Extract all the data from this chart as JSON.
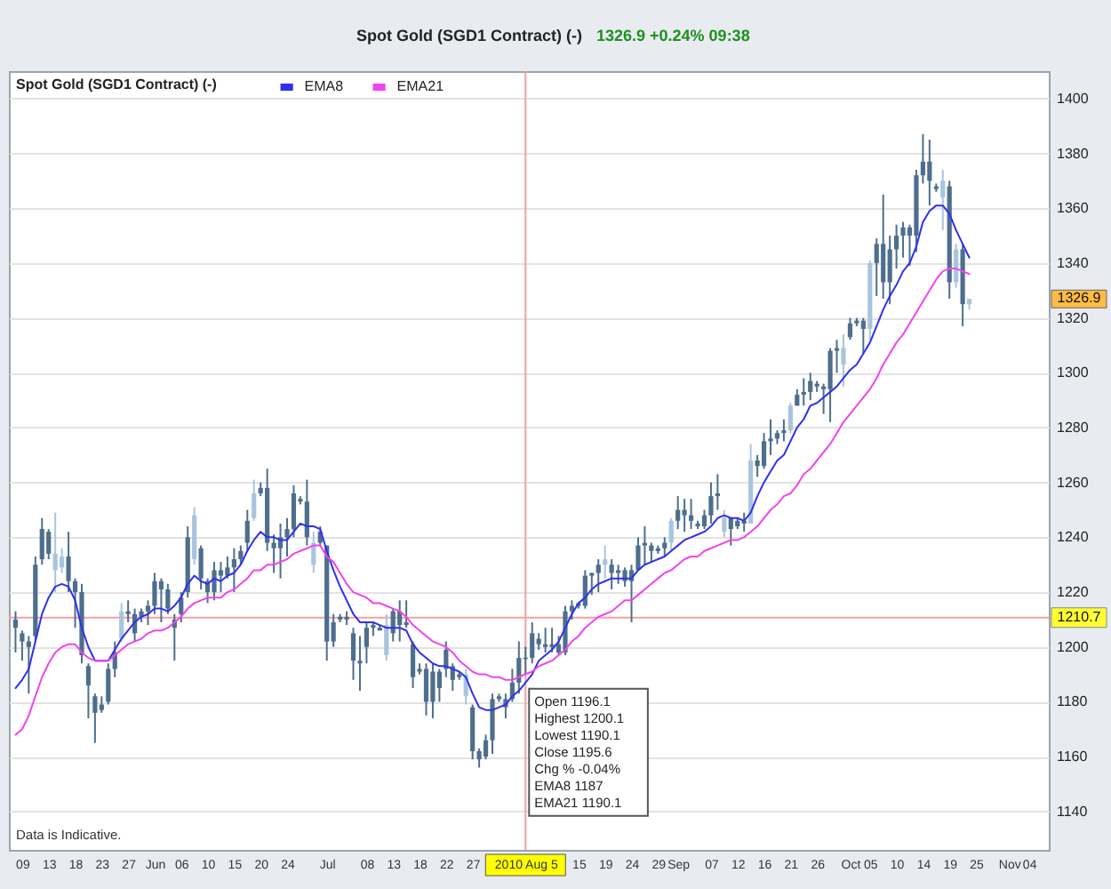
{
  "chart_data": {
    "type": "candlestick",
    "title": "Spot Gold (SGD1 Contract) (-)",
    "subtitle": "1326.9 +0.24% 09:38",
    "categories": [
      null,
      "09",
      null,
      null,
      null,
      "13",
      null,
      null,
      null,
      "18",
      null,
      null,
      null,
      "23",
      null,
      null,
      null,
      "27",
      null,
      null,
      null,
      "Jun",
      null,
      null,
      null,
      "06",
      null,
      null,
      null,
      "10",
      null,
      null,
      null,
      "15",
      null,
      null,
      null,
      "20",
      null,
      null,
      null,
      "24",
      null,
      null,
      null,
      null,
      null,
      "Jul",
      null,
      null,
      null,
      null,
      null,
      "08",
      null,
      null,
      null,
      "13",
      null,
      null,
      null,
      "18",
      null,
      null,
      null,
      "22",
      null,
      null,
      null,
      "27",
      null,
      null,
      null,
      null,
      null,
      null,
      null,
      "2010 Aug 5",
      null,
      null,
      null,
      null,
      null,
      null,
      null,
      "15",
      null,
      null,
      null,
      "19",
      null,
      null,
      null,
      "24",
      null,
      null,
      null,
      "29",
      null,
      null,
      "Sep",
      null,
      null,
      null,
      null,
      "07",
      null,
      null,
      null,
      "12",
      null,
      null,
      null,
      "16",
      null,
      null,
      null,
      "21",
      null,
      null,
      null,
      "26",
      null,
      null,
      null,
      null,
      "Oct",
      null,
      null,
      "05",
      null,
      null,
      null,
      "10",
      null,
      null,
      null,
      "14",
      null,
      null,
      null,
      "19",
      null,
      null,
      null,
      "25",
      null,
      null,
      null,
      null,
      "Nov",
      null,
      null,
      "04",
      null,
      null
    ],
    "ohlc": [
      [
        1210,
        1213,
        1198,
        1207
      ],
      [
        1205,
        1206,
        1195,
        1202
      ],
      [
        1202,
        1204,
        1183,
        1200
      ],
      [
        1230,
        1233,
        1202,
        1204
      ],
      [
        1243,
        1247,
        1230,
        1232
      ],
      [
        1242,
        1243,
        1232,
        1234
      ],
      [
        1228,
        1249,
        1220,
        1234
      ],
      [
        1229,
        1236,
        1227,
        1233
      ],
      [
        1233,
        1242,
        1220,
        1224
      ],
      [
        1224,
        1225,
        1207,
        1220
      ],
      [
        1220,
        1223,
        1194,
        1197
      ],
      [
        1193,
        1194,
        1174,
        1186
      ],
      [
        1182,
        1183,
        1165,
        1176
      ],
      [
        1179,
        1182,
        1176,
        1177
      ],
      [
        1192,
        1194,
        1179,
        1180
      ],
      [
        1198,
        1202,
        1189,
        1192
      ],
      [
        1203,
        1216,
        1202,
        1213
      ],
      [
        1213,
        1217,
        1209,
        1212
      ],
      [
        1212,
        1214,
        1202,
        1205
      ],
      [
        1213,
        1214,
        1209,
        1211
      ],
      [
        1215,
        1217,
        1208,
        1213
      ],
      [
        1224,
        1227,
        1212,
        1215
      ],
      [
        1224,
        1225,
        1209,
        1221
      ],
      [
        1221,
        1223,
        1212,
        1214
      ],
      [
        1210,
        1212,
        1195,
        1207
      ],
      [
        1218,
        1220,
        1209,
        1212
      ],
      [
        1240,
        1244,
        1218,
        1220
      ],
      [
        1232,
        1251,
        1230,
        1248
      ],
      [
        1236,
        1237,
        1221,
        1225
      ],
      [
        1224,
        1225,
        1216,
        1220
      ],
      [
        1228,
        1231,
        1217,
        1220
      ],
      [
        1228,
        1231,
        1220,
        1226
      ],
      [
        1229,
        1233,
        1225,
        1226
      ],
      [
        1232,
        1236,
        1220,
        1229
      ],
      [
        1235,
        1237,
        1230,
        1232
      ],
      [
        1246,
        1250,
        1235,
        1238
      ],
      [
        1247,
        1261,
        1246,
        1256
      ],
      [
        1258,
        1260,
        1255,
        1256
      ],
      [
        1258,
        1265,
        1235,
        1238
      ],
      [
        1238,
        1241,
        1227,
        1236
      ],
      [
        1240,
        1245,
        1225,
        1236
      ],
      [
        1243,
        1247,
        1233,
        1240
      ],
      [
        1256,
        1259,
        1240,
        1243
      ],
      [
        1254,
        1255,
        1252,
        1253
      ],
      [
        1253,
        1261,
        1237,
        1240
      ],
      [
        1230,
        1242,
        1227,
        1238
      ],
      [
        1242,
        1244,
        1237,
        1238
      ],
      [
        1237,
        1237,
        1195,
        1202
      ],
      [
        1209,
        1212,
        1200,
        1202
      ],
      [
        1211,
        1212,
        1209,
        1210
      ],
      [
        1211,
        1213,
        1208,
        1210
      ],
      [
        1205,
        1207,
        1188,
        1195
      ],
      [
        1195,
        1204,
        1184,
        1194
      ],
      [
        1207,
        1209,
        1194,
        1200
      ],
      [
        1208,
        1209,
        1204,
        1207
      ],
      [
        1207,
        1208,
        1206,
        1206
      ],
      [
        1197,
        1212,
        1195,
        1208
      ],
      [
        1213,
        1214,
        1202,
        1205
      ],
      [
        1213,
        1217,
        1202,
        1208
      ],
      [
        1209,
        1217,
        1207,
        1208
      ],
      [
        1201,
        1202,
        1185,
        1189
      ],
      [
        1192,
        1194,
        1190,
        1191
      ],
      [
        1192,
        1194,
        1175,
        1180
      ],
      [
        1191,
        1194,
        1174,
        1180
      ],
      [
        1191,
        1192,
        1180,
        1185
      ],
      [
        1199,
        1202,
        1189,
        1192
      ],
      [
        1193,
        1194,
        1184,
        1188
      ],
      [
        1190,
        1191,
        1188,
        1189
      ],
      [
        1182,
        1192,
        1179,
        1190
      ],
      [
        1178,
        1179,
        1159,
        1162
      ],
      [
        1162,
        1163,
        1156,
        1159
      ],
      [
        1166,
        1168,
        1159,
        1160
      ],
      [
        1181,
        1183,
        1161,
        1166
      ],
      [
        1182,
        1183,
        1180,
        1181
      ],
      [
        1181,
        1183,
        1174,
        1178
      ],
      [
        1187,
        1192,
        1180,
        1181
      ],
      [
        1196,
        1202,
        1183,
        1187
      ],
      [
        1196.1,
        1200.1,
        1190.1,
        1195.6
      ],
      [
        1205,
        1209,
        1194,
        1196
      ],
      [
        1203,
        1205,
        1199,
        1201
      ],
      [
        1201,
        1207,
        1198,
        1200
      ],
      [
        1201,
        1207,
        1198,
        1200
      ],
      [
        1201,
        1204,
        1197,
        1198
      ],
      [
        1213,
        1215,
        1197,
        1198
      ],
      [
        1215,
        1217,
        1210,
        1213
      ],
      [
        1216,
        1216,
        1214,
        1215
      ],
      [
        1226,
        1228,
        1214,
        1215
      ],
      [
        1227,
        1227,
        1219,
        1226
      ],
      [
        1230,
        1232,
        1220,
        1227
      ],
      [
        1230,
        1237,
        1225,
        1232
      ],
      [
        1230,
        1232,
        1221,
        1227
      ],
      [
        1228,
        1230,
        1223,
        1227
      ],
      [
        1228,
        1229,
        1222,
        1224
      ],
      [
        1228,
        1230,
        1209,
        1224
      ],
      [
        1237,
        1240,
        1228,
        1228
      ],
      [
        1238,
        1244,
        1230,
        1237
      ],
      [
        1237,
        1238,
        1231,
        1235
      ],
      [
        1236,
        1237,
        1234,
        1235
      ],
      [
        1238,
        1240,
        1233,
        1236
      ],
      [
        1238,
        1247,
        1235,
        1246
      ],
      [
        1250,
        1255,
        1243,
        1246
      ],
      [
        1250,
        1254,
        1242,
        1248
      ],
      [
        1248,
        1254,
        1243,
        1246
      ],
      [
        1245,
        1246,
        1243,
        1244
      ],
      [
        1248,
        1250,
        1243,
        1244
      ],
      [
        1255,
        1260,
        1245,
        1248
      ],
      [
        1256,
        1263,
        1250,
        1255
      ],
      [
        1242,
        1250,
        1240,
        1247
      ],
      [
        1247,
        1247,
        1237,
        1243
      ],
      [
        1246,
        1247,
        1243,
        1244
      ],
      [
        1246,
        1249,
        1242,
        1245
      ],
      [
        1245,
        1274,
        1245,
        1268
      ],
      [
        1268,
        1270,
        1262,
        1266
      ],
      [
        1275,
        1278,
        1265,
        1266
      ],
      [
        1276,
        1283,
        1270,
        1275
      ],
      [
        1278,
        1279,
        1274,
        1276
      ],
      [
        1279,
        1283,
        1275,
        1278
      ],
      [
        1279,
        1289,
        1278,
        1288
      ],
      [
        1292,
        1294,
        1288,
        1288
      ],
      [
        1293,
        1298,
        1288,
        1292
      ],
      [
        1297,
        1300,
        1290,
        1293
      ],
      [
        1296,
        1297,
        1293,
        1295
      ],
      [
        1295,
        1296,
        1285,
        1294
      ],
      [
        1308,
        1309,
        1282,
        1294
      ],
      [
        1309,
        1312,
        1300,
        1308
      ],
      [
        1303,
        1314,
        1295,
        1309
      ],
      [
        1318,
        1320,
        1312,
        1313
      ],
      [
        1319,
        1320,
        1317,
        1318
      ],
      [
        1319,
        1320,
        1307,
        1316
      ],
      [
        1316,
        1341,
        1312,
        1340
      ],
      [
        1347,
        1349,
        1328,
        1340
      ],
      [
        1347,
        1365,
        1327,
        1333
      ],
      [
        1345,
        1350,
        1325,
        1333
      ],
      [
        1350,
        1354,
        1338,
        1345
      ],
      [
        1353,
        1355,
        1342,
        1350
      ],
      [
        1353,
        1354,
        1339,
        1350
      ],
      [
        1372,
        1374,
        1344,
        1350
      ],
      [
        1377,
        1387,
        1369,
        1372
      ],
      [
        1377,
        1385,
        1361,
        1370
      ],
      [
        1368,
        1369,
        1366,
        1367
      ],
      [
        1364,
        1374,
        1352,
        1370
      ],
      [
        1368,
        1370,
        1327,
        1333
      ],
      [
        1333,
        1347,
        1331,
        1345
      ],
      [
        1345,
        1347,
        1317,
        1325
      ],
      [
        1325,
        1327,
        1323,
        1326.9
      ],
      null,
      null,
      null,
      null,
      null,
      null,
      null,
      null,
      null,
      null,
      null
    ],
    "colors": [
      "#4e6e8e",
      "#4e6e8e",
      "#4e6e8e",
      "#4e6e8e",
      "#4e6e8e",
      "#4e6e8e",
      "#a9c4de",
      "#a9c4de",
      "#4e6e8e",
      "#4e6e8e",
      "#4e6e8e",
      "#4e6e8e",
      "#4e6e8e",
      "#4e6e8e",
      "#4e6e8e",
      "#4e6e8e",
      "#a9c4de",
      "#4e6e8e",
      "#4e6e8e",
      "#4e6e8e",
      "#4e6e8e",
      "#4e6e8e",
      "#4e6e8e",
      "#4e6e8e",
      "#4e6e8e",
      "#4e6e8e",
      "#4e6e8e",
      "#a9c4de",
      "#4e6e8e",
      "#4e6e8e",
      "#4e6e8e",
      "#4e6e8e",
      "#4e6e8e",
      "#4e6e8e",
      "#4e6e8e",
      "#4e6e8e",
      "#a9c4de",
      "#4e6e8e",
      "#4e6e8e",
      "#4e6e8e",
      "#4e6e8e",
      "#4e6e8e",
      "#4e6e8e",
      "#4e6e8e",
      "#4e6e8e",
      "#a9c4de",
      "#4e6e8e",
      "#4e6e8e",
      "#4e6e8e",
      "#4e6e8e",
      "#4e6e8e",
      "#4e6e8e",
      "#4e6e8e",
      "#4e6e8e",
      "#4e6e8e",
      "#4e6e8e",
      "#a9c4de",
      "#4e6e8e",
      "#4e6e8e",
      "#4e6e8e",
      "#4e6e8e",
      "#4e6e8e",
      "#4e6e8e",
      "#4e6e8e",
      "#4e6e8e",
      "#4e6e8e",
      "#4e6e8e",
      "#4e6e8e",
      "#a9c4de",
      "#4e6e8e",
      "#4e6e8e",
      "#4e6e8e",
      "#4e6e8e",
      "#4e6e8e",
      "#4e6e8e",
      "#4e6e8e",
      "#4e6e8e",
      "#4e6e8e",
      "#4e6e8e",
      "#4e6e8e",
      "#4e6e8e",
      "#4e6e8e",
      "#4e6e8e",
      "#4e6e8e",
      "#4e6e8e",
      "#4e6e8e",
      "#4e6e8e",
      "#4e6e8e",
      "#4e6e8e",
      "#a9c4de",
      "#4e6e8e",
      "#4e6e8e",
      "#4e6e8e",
      "#4e6e8e",
      "#4e6e8e",
      "#4e6e8e",
      "#4e6e8e",
      "#4e6e8e",
      "#4e6e8e",
      "#a9c4de",
      "#4e6e8e",
      "#4e6e8e",
      "#4e6e8e",
      "#4e6e8e",
      "#4e6e8e",
      "#4e6e8e",
      "#4e6e8e",
      "#a9c4de",
      "#4e6e8e",
      "#4e6e8e",
      "#4e6e8e",
      "#a9c4de",
      "#4e6e8e",
      "#4e6e8e",
      "#4e6e8e",
      "#4e6e8e",
      "#4e6e8e",
      "#a9c4de",
      "#4e6e8e",
      "#4e6e8e",
      "#4e6e8e",
      "#4e6e8e",
      "#4e6e8e",
      "#4e6e8e",
      "#4e6e8e",
      "#a9c4de",
      "#4e6e8e",
      "#4e6e8e",
      "#4e6e8e",
      "#a9c4de",
      "#4e6e8e",
      "#4e6e8e",
      "#4e6e8e",
      "#4e6e8e",
      "#4e6e8e",
      "#4e6e8e",
      "#4e6e8e",
      "#4e6e8e",
      "#4e6e8e",
      "#4e6e8e",
      "#a9c4de",
      "#4e6e8e",
      "#a9c4de",
      "#4e6e8e",
      "#a9c4de",
      null,
      null,
      null,
      null,
      null,
      null,
      null,
      null,
      null,
      null,
      null
    ],
    "series": [
      {
        "name": "EMA8",
        "type": "line",
        "color": "#2f2ff0",
        "values": [
          1185,
          1188,
          1192,
          1202,
          1212,
          1218,
          1222,
          1223,
          1222,
          1217,
          1207,
          1200,
          1195,
          1195,
          1195,
          1199,
          1203,
          1206,
          1209,
          1211,
          1212,
          1214,
          1214,
          1213,
          1215,
          1218,
          1223,
          1226,
          1224,
          1223,
          1225,
          1224,
          1226,
          1227,
          1230,
          1235,
          1239,
          1242,
          1240,
          1240,
          1239,
          1239,
          1242,
          1245,
          1244,
          1244,
          1243,
          1235,
          1228,
          1222,
          1217,
          1212,
          1209,
          1209,
          1209,
          1208,
          1207,
          1207,
          1207,
          1206,
          1201,
          1198,
          1196,
          1194,
          1193,
          1193,
          1192,
          1191,
          1189,
          1183,
          1178,
          1177,
          1177,
          1178,
          1179,
          1182,
          1184,
          1187,
          1190,
          1195,
          1197,
          1199,
          1202,
          1207,
          1212,
          1216,
          1218,
          1221,
          1223,
          1224,
          1225,
          1225,
          1225,
          1225,
          1228,
          1230,
          1231,
          1232,
          1233,
          1235,
          1237,
          1239,
          1240,
          1241,
          1242,
          1244,
          1247,
          1248,
          1247,
          1247,
          1246,
          1249,
          1255,
          1260,
          1264,
          1268,
          1270,
          1275,
          1280,
          1283,
          1288,
          1289,
          1291,
          1293,
          1295,
          1298,
          1301,
          1303,
          1307,
          1311,
          1317,
          1323,
          1328,
          1332,
          1337,
          1340,
          1346,
          1355,
          1359,
          1361,
          1361,
          1358,
          1352,
          1347,
          1342,
          null,
          null,
          null,
          null,
          null,
          null,
          null,
          null,
          null,
          null,
          null
        ]
      },
      {
        "name": "EMA21",
        "type": "line",
        "color": "#f044f0",
        "values": [
          1168,
          1170,
          1175,
          1182,
          1189,
          1194,
          1198,
          1200,
          1201,
          1201,
          1198,
          1196,
          1195,
          1195,
          1195,
          1197,
          1199,
          1201,
          1202,
          1203,
          1205,
          1206,
          1206,
          1207,
          1209,
          1211,
          1214,
          1216,
          1217,
          1218,
          1218,
          1218,
          1220,
          1221,
          1223,
          1225,
          1228,
          1228,
          1230,
          1230,
          1231,
          1232,
          1234,
          1235,
          1236,
          1237,
          1237,
          1233,
          1231,
          1227,
          1223,
          1220,
          1219,
          1218,
          1216,
          1216,
          1215,
          1214,
          1213,
          1211,
          1208,
          1206,
          1204,
          1202,
          1201,
          1200,
          1198,
          1195,
          1193,
          1191,
          1190,
          1190,
          1189,
          1189,
          1188,
          1188,
          1189,
          1190.1,
          1191,
          1193,
          1194,
          1195,
          1197,
          1199,
          1202,
          1204,
          1207,
          1209,
          1211,
          1212,
          1213,
          1215,
          1217,
          1217,
          1219,
          1221,
          1223,
          1225,
          1227,
          1228,
          1230,
          1232,
          1233,
          1233,
          1235,
          1236,
          1237,
          1238,
          1239,
          1239,
          1240,
          1242,
          1244,
          1247,
          1250,
          1252,
          1255,
          1256,
          1259,
          1263,
          1265,
          1268,
          1271,
          1274,
          1278,
          1282,
          1285,
          1288,
          1291,
          1294,
          1298,
          1303,
          1307,
          1311,
          1314,
          1318,
          1322,
          1326,
          1330,
          1334,
          1337,
          1338,
          1338,
          1337,
          1336,
          null,
          null,
          null,
          null,
          null,
          null,
          null,
          null,
          null,
          null,
          null
        ]
      }
    ],
    "ylim": [
      1126,
      1410
    ],
    "yticks": [
      1140,
      1160,
      1180,
      1200,
      1220,
      1240,
      1260,
      1280,
      1300,
      1320,
      1340,
      1360,
      1380,
      1400
    ],
    "grid": "y",
    "legend": "top left",
    "ref_lines": [
      {
        "axis": "y",
        "value": 1210.7,
        "label": "1210.7",
        "color": "#f4a0a0"
      },
      {
        "axis": "x",
        "value": "2010 Aug 5",
        "color": "#f4a0a0"
      }
    ],
    "annotations": [
      "Data is Indicative.",
      "Open 1196.1",
      "Highest 1200.1",
      "Lowest 1190.1",
      "Close 1195.6",
      "Chg % -0.04%",
      "EMA8 1187",
      "EMA21 1190.1",
      {
        "text": "1326.9",
        "y": 1326.9
      }
    ]
  }
}
